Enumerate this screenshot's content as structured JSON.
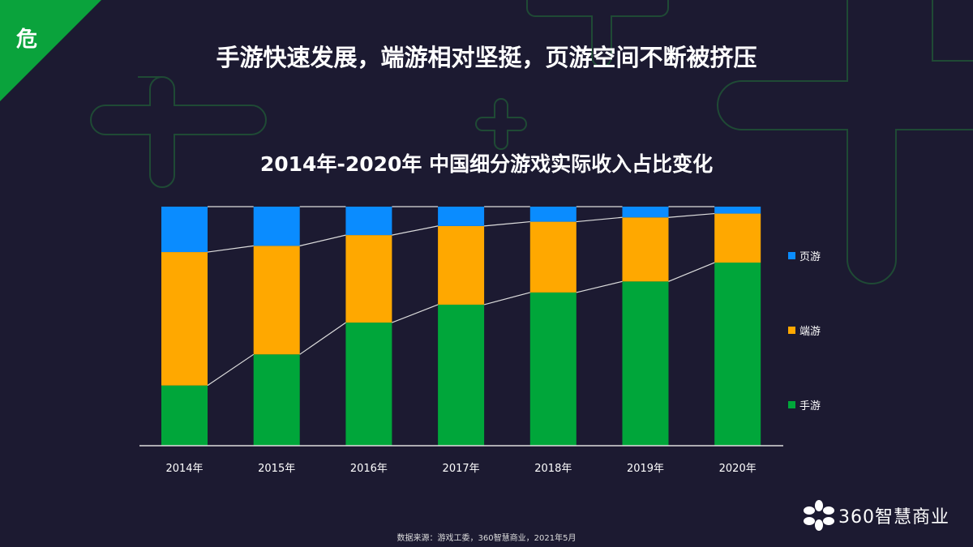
{
  "corner_badge": "危",
  "headline": "手游快速发展，端游相对坚挺，页游空间不断被挤压",
  "source": "数据来源：游戏工委，360智慧商业，2021年5月",
  "logo_text": "360智慧商业",
  "colors": {
    "background": "#1c1a31",
    "mobile": "#00a63a",
    "client": "#ffa800",
    "web": "#0a8cff",
    "accent": "#0aa33c"
  },
  "chart_data": {
    "type": "bar",
    "stacked": true,
    "title": "2014年-2020年 中国细分游戏实际收入占比变化",
    "xlabel": "",
    "ylabel": "",
    "ylim": [
      0,
      100
    ],
    "unit": "%",
    "grid": false,
    "legend_position": "right",
    "categories": [
      "2014年",
      "2015年",
      "2016年",
      "2017年",
      "2018年",
      "2019年",
      "2020年"
    ],
    "series": [
      {
        "name": "手游",
        "color": "#00a63a",
        "values": [
          25.2,
          38.2,
          51.5,
          59.0,
          64.1,
          68.7,
          76.6
        ]
      },
      {
        "name": "端游",
        "color": "#ffa800",
        "values": [
          55.8,
          45.4,
          36.6,
          32.9,
          29.6,
          26.8,
          20.5
        ]
      },
      {
        "name": "页游",
        "color": "#0a8cff",
        "values": [
          19.0,
          16.4,
          11.9,
          8.1,
          6.3,
          4.5,
          2.9
        ]
      }
    ]
  }
}
